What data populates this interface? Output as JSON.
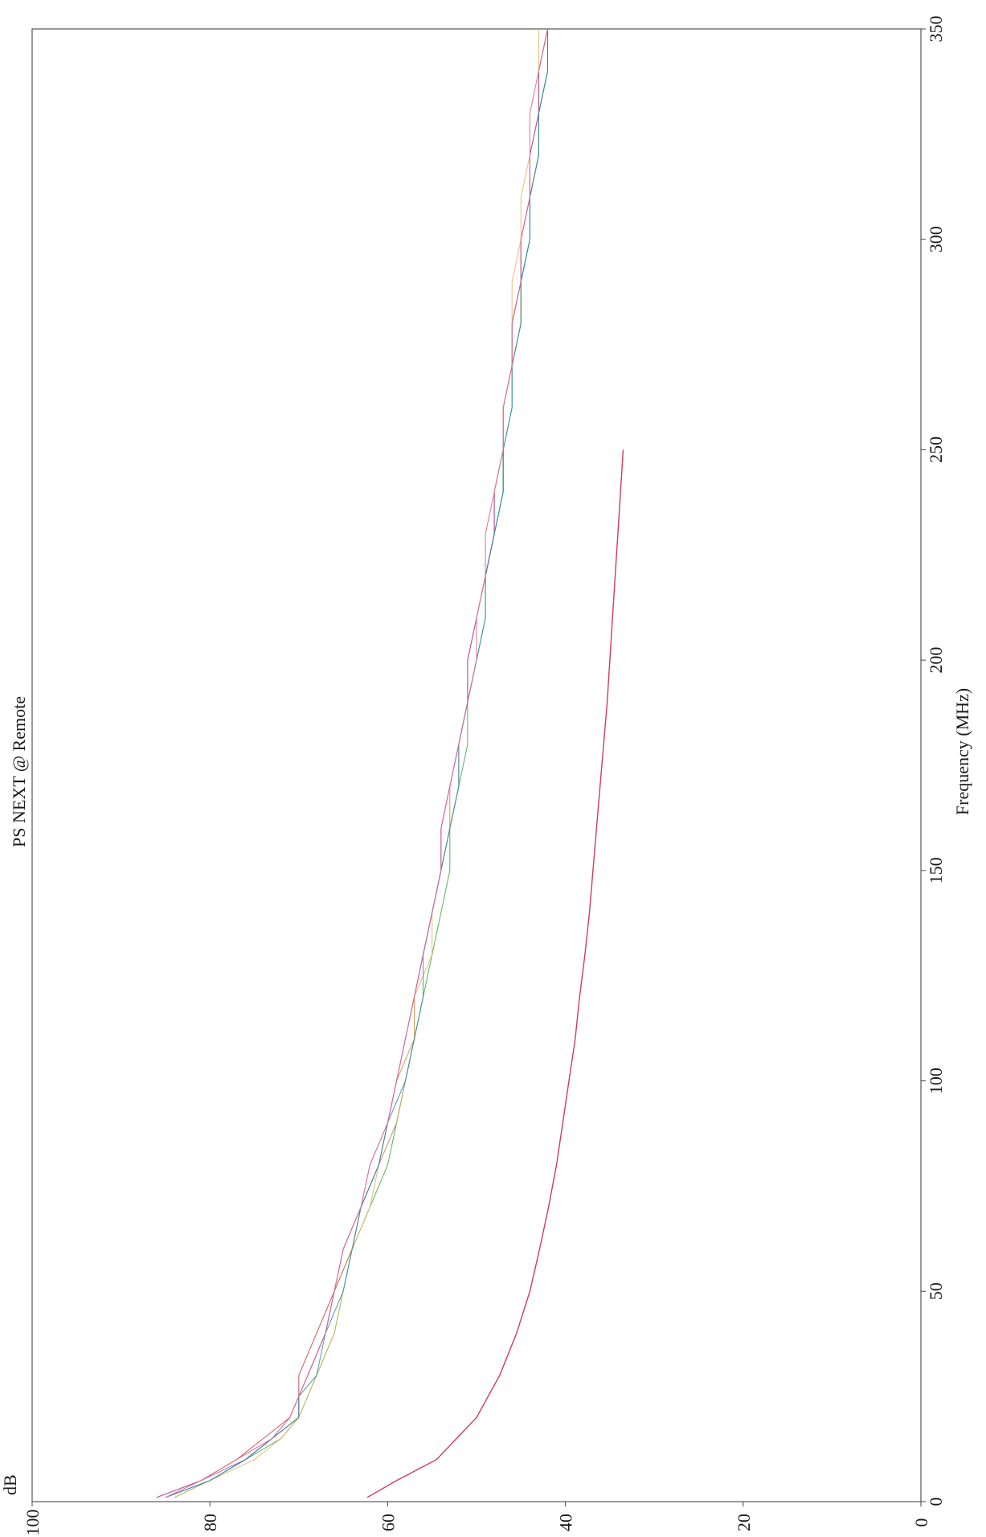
{
  "chart_data": {
    "type": "line",
    "title": "PS NEXT @ Remote",
    "xlabel": "Frequency (MHz)",
    "ylabel": "dB",
    "xlim": [
      0,
      350
    ],
    "ylim": [
      0,
      100
    ],
    "x_ticks": [
      "0",
      "50",
      "100",
      "150",
      "200",
      "250",
      "300",
      "350"
    ],
    "y_ticks": [
      "0",
      "20",
      "40",
      "60",
      "80",
      "100"
    ],
    "grid": false,
    "orientation": "rotated-90-ccw",
    "colors": {
      "axis": "#444444",
      "series": [
        "#3b55c9",
        "#d43a3a",
        "#3aa63a",
        "#c98a2a",
        "#b04ab0",
        "#e8b060",
        "#2a8ab0",
        "#e070a0"
      ],
      "limit": "#d23c5a"
    },
    "measured_series": {
      "x": [
        1,
        5,
        10,
        15,
        20,
        25,
        30,
        40,
        50,
        60,
        70,
        80,
        90,
        100,
        110,
        120,
        130,
        140,
        150,
        160,
        170,
        180,
        190,
        200,
        210,
        220,
        230,
        240,
        250,
        260,
        270,
        280,
        290,
        300,
        310,
        320,
        330,
        340,
        350
      ],
      "series": [
        {
          "values": [
            85,
            80,
            76,
            73,
            70,
            70,
            69,
            67,
            66,
            64,
            63,
            61,
            59,
            58,
            57,
            57,
            56,
            55,
            54,
            53,
            52,
            52,
            51,
            50,
            50,
            49,
            48,
            47,
            47,
            47,
            46,
            46,
            45,
            44,
            44,
            43,
            43,
            42,
            42
          ]
        },
        {
          "values": [
            86,
            81,
            77,
            74,
            71,
            70,
            70,
            68,
            66,
            65,
            63,
            61,
            60,
            59,
            58,
            57,
            56,
            55,
            54,
            54,
            53,
            52,
            51,
            51,
            50,
            49,
            48,
            48,
            47,
            47,
            46,
            46,
            45,
            45,
            44,
            44,
            43,
            43,
            42
          ]
        },
        {
          "values": [
            84,
            80,
            76,
            72,
            70,
            69,
            68,
            66,
            65,
            64,
            62,
            60,
            59,
            58,
            57,
            56,
            55,
            54,
            53,
            53,
            52,
            51,
            51,
            50,
            49,
            49,
            48,
            47,
            47,
            46,
            46,
            45,
            45,
            44,
            44,
            43,
            43,
            42,
            42
          ]
        },
        {
          "values": [
            85,
            81,
            77,
            73,
            70,
            70,
            69,
            67,
            66,
            64,
            63,
            61,
            60,
            59,
            57,
            57,
            56,
            55,
            54,
            53,
            53,
            52,
            51,
            50,
            50,
            49,
            48,
            48,
            47,
            47,
            46,
            45,
            45,
            45,
            44,
            43,
            43,
            43,
            42
          ]
        },
        {
          "values": [
            86,
            81,
            76,
            73,
            71,
            70,
            69,
            67,
            66,
            65,
            63,
            62,
            60,
            59,
            58,
            57,
            56,
            55,
            54,
            54,
            53,
            52,
            51,
            51,
            50,
            49,
            48,
            48,
            47,
            47,
            46,
            46,
            45,
            45,
            44,
            44,
            43,
            43,
            42
          ]
        },
        {
          "values": [
            84,
            80,
            75,
            72,
            70,
            69,
            68,
            66,
            65,
            64,
            62,
            61,
            59,
            58,
            57,
            57,
            55,
            55,
            54,
            53,
            52,
            52,
            51,
            50,
            50,
            49,
            49,
            48,
            47,
            47,
            46,
            46,
            46,
            45,
            45,
            44,
            44,
            43,
            43
          ]
        },
        {
          "values": [
            85,
            80,
            76,
            73,
            70,
            70,
            68,
            67,
            65,
            64,
            63,
            61,
            60,
            58,
            57,
            56,
            56,
            55,
            54,
            53,
            52,
            52,
            51,
            50,
            49,
            49,
            48,
            47,
            47,
            46,
            46,
            45,
            45,
            44,
            44,
            43,
            43,
            42,
            42
          ]
        },
        {
          "values": [
            85,
            81,
            77,
            73,
            71,
            70,
            69,
            67,
            66,
            65,
            63,
            62,
            60,
            59,
            58,
            57,
            56,
            55,
            54,
            54,
            53,
            52,
            51,
            50,
            50,
            49,
            49,
            48,
            47,
            47,
            46,
            46,
            45,
            45,
            44,
            44,
            44,
            43,
            42
          ]
        }
      ]
    },
    "limit_line": {
      "x": [
        1,
        5,
        10,
        20,
        30,
        40,
        50,
        60,
        70,
        80,
        90,
        100,
        110,
        120,
        130,
        140,
        150,
        160,
        170,
        180,
        190,
        200,
        210,
        220,
        230,
        240,
        250
      ],
      "values": [
        62.3,
        59.0,
        54.5,
        50.0,
        47.4,
        45.5,
        44.0,
        42.9,
        41.9,
        41.0,
        40.3,
        39.6,
        38.9,
        38.4,
        37.8,
        37.3,
        36.9,
        36.5,
        36.1,
        35.7,
        35.3,
        35.0,
        34.7,
        34.4,
        34.1,
        33.8,
        33.5
      ]
    }
  }
}
